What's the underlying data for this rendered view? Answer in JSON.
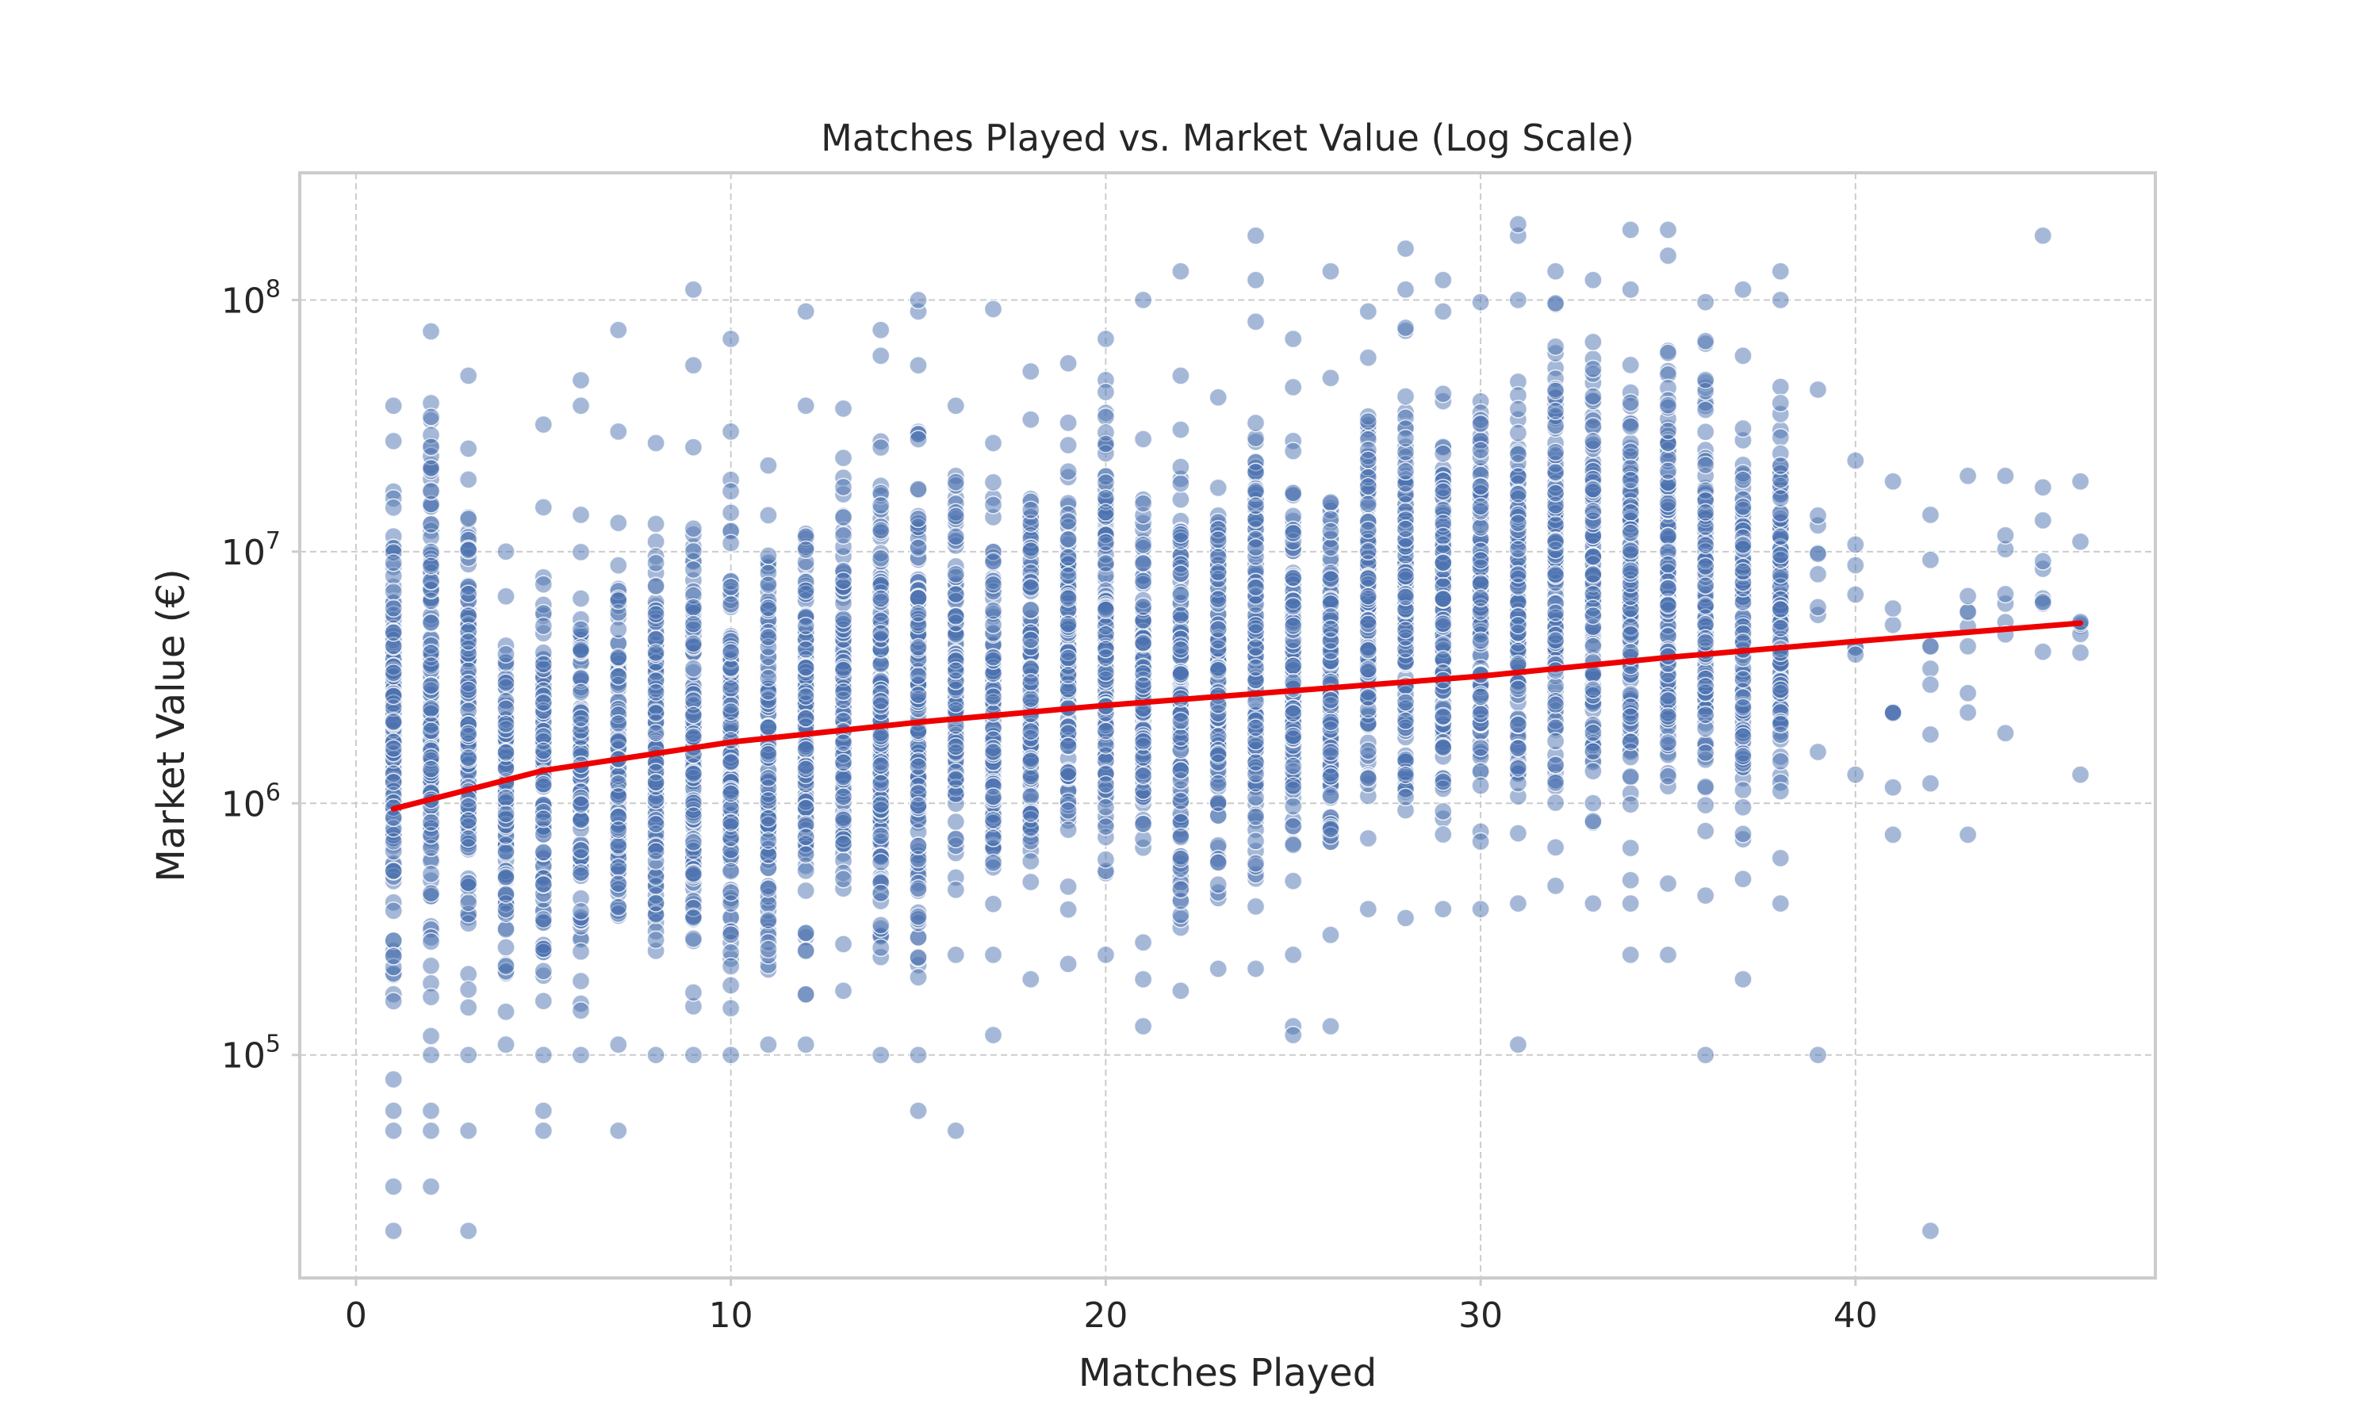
{
  "chart_data": {
    "type": "scatter",
    "title": "Matches Played vs. Market Value (Log Scale)",
    "xlabel": "Matches Played",
    "ylabel": "Market Value (€)",
    "xlim": [
      -1.5,
      48.0
    ],
    "ylim": [
      13000,
      320000000
    ],
    "yscale": "log",
    "grid": true,
    "x_ticks": [
      {
        "value": 0,
        "label": "0"
      },
      {
        "value": 10,
        "label": "10"
      },
      {
        "value": 20,
        "label": "20"
      },
      {
        "value": 30,
        "label": "30"
      },
      {
        "value": 40,
        "label": "40"
      }
    ],
    "y_ticks": [
      {
        "value": 100000,
        "base": "10",
        "exp": "5"
      },
      {
        "value": 1000000,
        "base": "10",
        "exp": "6"
      },
      {
        "value": 10000000,
        "base": "10",
        "exp": "7"
      },
      {
        "value": 100000000,
        "base": "10",
        "exp": "8"
      }
    ],
    "scatter_color": "#4c72b0",
    "trend_color": "#ee0000",
    "columns": [
      {
        "x": 1,
        "min": 80000,
        "max": 38000000,
        "outliers": [
          60000,
          50000,
          30000,
          20000
        ]
      },
      {
        "x": 2,
        "min": 100000,
        "max": 75000000,
        "outliers": [
          60000,
          50000,
          30000
        ]
      },
      {
        "x": 3,
        "min": 100000,
        "max": 50000000,
        "outliers": [
          50000,
          20000
        ]
      },
      {
        "x": 4,
        "min": 110000,
        "max": 10000000,
        "outliers": []
      },
      {
        "x": 5,
        "min": 100000,
        "max": 15000000,
        "outliers": [
          60000,
          50000,
          32000000
        ]
      },
      {
        "x": 6,
        "min": 100000,
        "max": 14000000,
        "outliers": [
          48000000,
          38000000
        ]
      },
      {
        "x": 7,
        "min": 110000,
        "max": 13000000,
        "outliers": [
          50000,
          30000000,
          76000000
        ]
      },
      {
        "x": 8,
        "min": 100000,
        "max": 27000000,
        "outliers": []
      },
      {
        "x": 9,
        "min": 100000,
        "max": 26000000,
        "outliers": [
          55000000,
          110000000
        ]
      },
      {
        "x": 10,
        "min": 100000,
        "max": 30000000,
        "outliers": [
          70000000
        ]
      },
      {
        "x": 11,
        "min": 110000,
        "max": 22000000,
        "outliers": []
      },
      {
        "x": 12,
        "min": 110000,
        "max": 38000000,
        "outliers": [
          90000000
        ]
      },
      {
        "x": 13,
        "min": 180000,
        "max": 37000000,
        "outliers": []
      },
      {
        "x": 14,
        "min": 100000,
        "max": 60000000,
        "outliers": [
          76000000
        ]
      },
      {
        "x": 15,
        "min": 100000,
        "max": 55000000,
        "outliers": [
          60000,
          90000000,
          100000000
        ]
      },
      {
        "x": 16,
        "min": 250000,
        "max": 38000000,
        "outliers": [
          50000
        ]
      },
      {
        "x": 17,
        "min": 250000,
        "max": 27000000,
        "outliers": [
          120000,
          92000000
        ]
      },
      {
        "x": 18,
        "min": 200000,
        "max": 52000000,
        "outliers": []
      },
      {
        "x": 19,
        "min": 230000,
        "max": 56000000,
        "outliers": []
      },
      {
        "x": 20,
        "min": 250000,
        "max": 70000000,
        "outliers": []
      },
      {
        "x": 21,
        "min": 280000,
        "max": 28000000,
        "outliers": [
          130000,
          200000,
          100000000
        ]
      },
      {
        "x": 22,
        "min": 180000,
        "max": 50000000,
        "outliers": [
          130000000
        ]
      },
      {
        "x": 23,
        "min": 220000,
        "max": 41000000,
        "outliers": []
      },
      {
        "x": 24,
        "min": 220000,
        "max": 82000000,
        "outliers": [
          120000000,
          180000000
        ]
      },
      {
        "x": 25,
        "min": 250000,
        "max": 45000000,
        "outliers": [
          130000,
          120000,
          70000000
        ]
      },
      {
        "x": 26,
        "min": 300000,
        "max": 49000000,
        "outliers": [
          130000,
          130000000
        ]
      },
      {
        "x": 27,
        "min": 380000,
        "max": 90000000,
        "outliers": []
      },
      {
        "x": 28,
        "min": 350000,
        "max": 110000000,
        "outliers": [
          160000000
        ]
      },
      {
        "x": 29,
        "min": 380000,
        "max": 90000000,
        "outliers": [
          120000000
        ]
      },
      {
        "x": 30,
        "min": 380000,
        "max": 98000000,
        "outliers": []
      },
      {
        "x": 31,
        "min": 400000,
        "max": 100000000,
        "outliers": [
          110000,
          180000000,
          200000000
        ]
      },
      {
        "x": 32,
        "min": 470000,
        "max": 130000000,
        "outliers": []
      },
      {
        "x": 33,
        "min": 400000,
        "max": 120000000,
        "outliers": []
      },
      {
        "x": 34,
        "min": 400000,
        "max": 110000000,
        "outliers": [
          250000,
          190000000
        ]
      },
      {
        "x": 35,
        "min": 480000,
        "max": 150000000,
        "outliers": [
          250000,
          190000000
        ]
      },
      {
        "x": 36,
        "min": 430000,
        "max": 98000000,
        "outliers": [
          100000
        ]
      },
      {
        "x": 37,
        "min": 500000,
        "max": 60000000,
        "outliers": [
          200000,
          110000000
        ]
      },
      {
        "x": 38,
        "min": 400000,
        "max": 100000000,
        "outliers": [
          130000000
        ]
      },
      {
        "x": 39,
        "min": 1600000,
        "max": 44000000,
        "outliers": [
          100000
        ]
      },
      {
        "x": 40,
        "min": 1300000,
        "max": 23000000,
        "outliers": []
      },
      {
        "x": 41,
        "min": 750000,
        "max": 19000000,
        "outliers": []
      },
      {
        "x": 42,
        "min": 1200000,
        "max": 14000000,
        "outliers": [
          20000
        ]
      },
      {
        "x": 43,
        "min": 750000,
        "max": 20000000,
        "outliers": []
      },
      {
        "x": 44,
        "min": 1900000,
        "max": 20000000,
        "outliers": []
      },
      {
        "x": 45,
        "min": 4000000,
        "max": 18000000,
        "outliers": [
          180000000
        ]
      },
      {
        "x": 46,
        "min": 1300000,
        "max": 19000000,
        "outliers": []
      }
    ],
    "trend_line": {
      "x": [
        1,
        5,
        10,
        15,
        20,
        25,
        30,
        35,
        40,
        46
      ],
      "y": [
        950000,
        1350000,
        1750000,
        2100000,
        2450000,
        2800000,
        3200000,
        3800000,
        4400000,
        5200000
      ]
    }
  }
}
